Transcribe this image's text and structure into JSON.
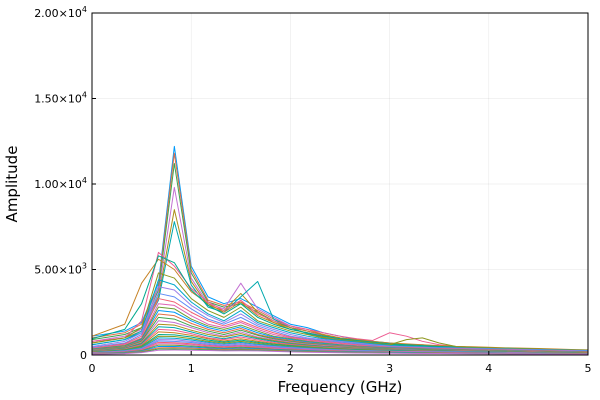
{
  "chart_data": {
    "type": "line",
    "xlabel": "Frequency (GHz)",
    "ylabel": "Amplitude",
    "xlim": [
      0,
      5
    ],
    "ylim": [
      0,
      20000
    ],
    "grid": true,
    "legend": "none",
    "x_ticks": [
      {
        "value": 0,
        "label": "0"
      },
      {
        "value": 1,
        "label": "1"
      },
      {
        "value": 2,
        "label": "2"
      },
      {
        "value": 3,
        "label": "3"
      },
      {
        "value": 4,
        "label": "4"
      },
      {
        "value": 5,
        "label": "5"
      }
    ],
    "y_ticks": [
      {
        "value": 0,
        "mantissa": "0",
        "exponent": ""
      },
      {
        "value": 5000,
        "mantissa": "5.00×10",
        "exponent": "3"
      },
      {
        "value": 10000,
        "mantissa": "1.00×10",
        "exponent": "4"
      },
      {
        "value": 15000,
        "mantissa": "1.50×10",
        "exponent": "4"
      },
      {
        "value": 20000,
        "mantissa": "2.00×10",
        "exponent": "4"
      }
    ],
    "x": [
      0,
      0.33,
      0.5,
      0.67,
      0.83,
      1.0,
      1.17,
      1.33,
      1.5,
      1.67,
      1.83,
      2.0,
      2.17,
      2.33,
      2.5,
      2.67,
      2.83,
      3.0,
      3.17,
      3.33,
      3.5,
      3.67,
      3.83,
      4.0,
      4.17,
      4.33,
      4.5,
      4.67,
      4.83,
      5.0
    ],
    "colors": [
      "#009AFA",
      "#E36F47",
      "#3EA44E",
      "#C371D2",
      "#AC8D18",
      "#00A9AD",
      "#ED5E93",
      "#C68225",
      "#00A98D",
      "#8E971E",
      "#00A8CB",
      "#9B7FE8",
      "#608CF6",
      "#F05F73",
      "#DD64B5",
      "#6B9E32"
    ],
    "series": [
      {
        "values": [
          1100,
          1400,
          1900,
          4200,
          12200,
          5200,
          3400,
          3000,
          3300,
          2800,
          2300,
          1800,
          1600,
          1300,
          1100,
          900,
          800,
          700,
          600,
          600,
          500,
          500,
          450,
          400,
          400,
          350,
          350,
          300,
          300,
          250
        ]
      },
      {
        "values": [
          1000,
          1300,
          1800,
          4000,
          11800,
          5000,
          3200,
          2900,
          3100,
          2600,
          2100,
          1700,
          1500,
          1200,
          1000,
          850,
          750,
          650,
          600,
          550,
          500,
          450,
          400,
          380,
          350,
          330,
          300,
          280,
          260,
          240
        ]
      },
      {
        "values": [
          900,
          1200,
          1600,
          3800,
          11200,
          4800,
          3100,
          2800,
          3000,
          2500,
          2000,
          1600,
          1400,
          1150,
          950,
          800,
          700,
          600,
          550,
          500,
          450,
          420,
          400,
          370,
          340,
          320,
          300,
          270,
          250,
          230
        ]
      },
      {
        "values": [
          800,
          1100,
          1500,
          3600,
          9800,
          4500,
          3000,
          2700,
          4200,
          2700,
          2200,
          1700,
          1400,
          1100,
          900,
          750,
          650,
          560,
          500,
          460,
          420,
          400,
          380,
          350,
          330,
          300,
          280,
          260,
          240,
          220
        ]
      },
      {
        "values": [
          700,
          1000,
          1400,
          3400,
          8500,
          4300,
          2900,
          2600,
          3600,
          2500,
          1900,
          1500,
          1300,
          1050,
          850,
          700,
          600,
          520,
          480,
          440,
          400,
          380,
          350,
          330,
          310,
          290,
          270,
          250,
          230,
          210
        ]
      },
      {
        "values": [
          600,
          900,
          1300,
          3200,
          7800,
          4100,
          2800,
          2500,
          3400,
          4300,
          2100,
          1600,
          1250,
          1000,
          800,
          650,
          560,
          500,
          450,
          420,
          380,
          360,
          340,
          320,
          300,
          280,
          260,
          240,
          220,
          200
        ]
      },
      {
        "values": [
          800,
          1000,
          2000,
          6000,
          5200,
          3900,
          3100,
          2600,
          3200,
          2400,
          2000,
          1700,
          1500,
          1300,
          1100,
          950,
          850,
          1300,
          1100,
          800,
          600,
          500,
          450,
          400,
          380,
          350,
          320,
          300,
          280,
          250
        ]
      },
      {
        "values": [
          1100,
          1800,
          4200,
          5600,
          5000,
          3700,
          3000,
          2500,
          3100,
          2300,
          1900,
          1600,
          1400,
          1200,
          1000,
          900,
          800,
          700,
          650,
          600,
          550,
          500,
          480,
          450,
          420,
          400,
          380,
          350,
          320,
          300
        ]
      },
      {
        "values": [
          950,
          1500,
          3000,
          5800,
          5400,
          3800,
          2900,
          2400,
          3000,
          2200,
          1800,
          1500,
          1300,
          1100,
          950,
          850,
          750,
          650,
          600,
          550,
          500,
          470,
          440,
          420,
          400,
          370,
          340,
          310,
          290,
          270
        ]
      },
      {
        "values": [
          700,
          1000,
          1600,
          4800,
          4500,
          3300,
          2600,
          2200,
          2800,
          2000,
          1700,
          1400,
          1200,
          1000,
          900,
          800,
          700,
          600,
          900,
          1000,
          700,
          500,
          450,
          420,
          400,
          380,
          350,
          320,
          300,
          280
        ]
      },
      {
        "values": [
          600,
          900,
          1400,
          4400,
          4100,
          3100,
          2400,
          2000,
          2600,
          1900,
          1600,
          1300,
          1100,
          950,
          850,
          750,
          650,
          560,
          520,
          480,
          440,
          420,
          400,
          380,
          360,
          340,
          320,
          300,
          280,
          260
        ]
      },
      {
        "values": [
          500,
          800,
          1300,
          4000,
          3800,
          2900,
          2300,
          1900,
          2400,
          1800,
          1500,
          1200,
          1000,
          900,
          800,
          700,
          600,
          520,
          480,
          450,
          420,
          400,
          380,
          360,
          340,
          320,
          300,
          280,
          260,
          240
        ]
      },
      {
        "values": [
          450,
          700,
          1200,
          3600,
          3400,
          2700,
          2100,
          1800,
          2200,
          1700,
          1400,
          1100,
          950,
          850,
          750,
          650,
          560,
          500,
          460,
          430,
          400,
          380,
          360,
          340,
          320,
          300,
          280,
          260,
          240,
          220
        ]
      },
      {
        "values": [
          400,
          650,
          1100,
          3300,
          3100,
          2500,
          2000,
          1700,
          2000,
          1600,
          1300,
          1050,
          900,
          800,
          700,
          600,
          520,
          470,
          440,
          410,
          380,
          360,
          340,
          320,
          300,
          280,
          260,
          240,
          220,
          200
        ]
      },
      {
        "values": [
          380,
          600,
          1000,
          3000,
          2900,
          2300,
          1800,
          1600,
          1900,
          1500,
          1200,
          1000,
          850,
          750,
          650,
          560,
          500,
          450,
          420,
          390,
          360,
          340,
          320,
          300,
          280,
          260,
          240,
          220,
          210,
          190
        ]
      },
      {
        "values": [
          350,
          550,
          950,
          2800,
          2700,
          2100,
          1700,
          1500,
          1750,
          1400,
          1100,
          950,
          800,
          700,
          600,
          520,
          470,
          430,
          400,
          370,
          340,
          320,
          300,
          280,
          270,
          250,
          230,
          210,
          200,
          180
        ]
      },
      {
        "values": [
          320,
          500,
          900,
          2600,
          2500,
          2000,
          1600,
          1400,
          1650,
          1300,
          1050,
          900,
          760,
          660,
          570,
          500,
          450,
          410,
          380,
          350,
          330,
          310,
          290,
          270,
          260,
          240,
          220,
          200,
          190,
          170
        ]
      },
      {
        "values": [
          300,
          480,
          850,
          2400,
          2300,
          1850,
          1500,
          1300,
          1550,
          1200,
          1000,
          850,
          720,
          620,
          540,
          480,
          430,
          390,
          360,
          340,
          310,
          300,
          280,
          260,
          250,
          230,
          210,
          190,
          180,
          160
        ]
      },
      {
        "values": [
          280,
          450,
          800,
          2200,
          2100,
          1700,
          1400,
          1200,
          1450,
          1150,
          950,
          800,
          680,
          590,
          510,
          450,
          410,
          370,
          340,
          320,
          300,
          280,
          270,
          250,
          240,
          220,
          200,
          180,
          170,
          150
        ]
      },
      {
        "values": [
          260,
          420,
          750,
          2000,
          1900,
          1600,
          1300,
          1100,
          1350,
          1050,
          900,
          750,
          640,
          560,
          490,
          430,
          390,
          350,
          330,
          300,
          280,
          270,
          250,
          240,
          230,
          210,
          190,
          170,
          160,
          140
        ]
      },
      {
        "values": [
          240,
          400,
          700,
          1800,
          1750,
          1450,
          1200,
          1050,
          1250,
          1000,
          850,
          700,
          600,
          520,
          460,
          410,
          370,
          340,
          310,
          290,
          270,
          250,
          240,
          230,
          220,
          200,
          180,
          160,
          150,
          130
        ]
      },
      {
        "values": [
          220,
          380,
          650,
          1650,
          1600,
          1350,
          1100,
          950,
          1150,
          950,
          800,
          660,
          560,
          490,
          430,
          380,
          350,
          320,
          300,
          280,
          260,
          240,
          230,
          220,
          210,
          190,
          170,
          150,
          140,
          120
        ]
      },
      {
        "values": [
          200,
          350,
          600,
          1500,
          1450,
          1250,
          1000,
          900,
          1050,
          880,
          740,
          620,
          530,
          460,
          410,
          360,
          330,
          300,
          280,
          260,
          240,
          230,
          220,
          210,
          200,
          180,
          160,
          140,
          130,
          110
        ]
      },
      {
        "values": [
          180,
          320,
          550,
          1350,
          1300,
          1150,
          950,
          820,
          950,
          800,
          680,
          580,
          500,
          430,
          380,
          340,
          310,
          280,
          260,
          240,
          230,
          220,
          210,
          200,
          190,
          170,
          150,
          130,
          120,
          100
        ]
      },
      {
        "values": [
          160,
          300,
          500,
          1200,
          1180,
          1050,
          870,
          760,
          870,
          740,
          630,
          540,
          460,
          400,
          360,
          320,
          290,
          270,
          250,
          230,
          220,
          210,
          200,
          190,
          180,
          160,
          140,
          120,
          110,
          90
        ]
      },
      {
        "values": [
          150,
          280,
          460,
          1100,
          1080,
          960,
          800,
          700,
          800,
          680,
          580,
          500,
          430,
          380,
          340,
          300,
          270,
          250,
          230,
          220,
          210,
          200,
          190,
          180,
          170,
          150,
          130,
          110,
          100,
          85
        ]
      },
      {
        "values": [
          140,
          260,
          420,
          1000,
          980,
          880,
          740,
          640,
          730,
          620,
          540,
          460,
          400,
          350,
          310,
          280,
          250,
          230,
          220,
          210,
          200,
          190,
          180,
          170,
          160,
          140,
          120,
          100,
          95,
          80
        ]
      },
      {
        "values": [
          130,
          240,
          380,
          900,
          890,
          800,
          680,
          590,
          670,
          570,
          500,
          430,
          370,
          330,
          290,
          260,
          240,
          220,
          210,
          200,
          190,
          180,
          170,
          160,
          150,
          130,
          110,
          95,
          90,
          75
        ]
      },
      {
        "values": [
          120,
          220,
          350,
          820,
          800,
          730,
          620,
          540,
          610,
          520,
          460,
          400,
          340,
          300,
          270,
          240,
          220,
          210,
          200,
          190,
          180,
          170,
          160,
          150,
          140,
          120,
          100,
          90,
          85,
          70
        ]
      },
      {
        "values": [
          110,
          200,
          320,
          740,
          720,
          660,
          560,
          490,
          550,
          480,
          420,
          360,
          310,
          280,
          250,
          220,
          200,
          190,
          180,
          170,
          160,
          150,
          140,
          130,
          120,
          110,
          95,
          85,
          80,
          65
        ]
      },
      {
        "values": [
          100,
          180,
          290,
          660,
          650,
          600,
          510,
          450,
          500,
          440,
          380,
          330,
          290,
          260,
          230,
          200,
          190,
          180,
          170,
          160,
          150,
          140,
          130,
          120,
          110,
          100,
          90,
          80,
          75,
          60
        ]
      },
      {
        "values": [
          90,
          160,
          260,
          580,
          570,
          530,
          460,
          400,
          450,
          400,
          340,
          300,
          260,
          230,
          210,
          190,
          170,
          160,
          150,
          140,
          130,
          120,
          115,
          110,
          100,
          90,
          80,
          70,
          65,
          55
        ]
      },
      {
        "values": [
          80,
          140,
          230,
          500,
          500,
          470,
          410,
          360,
          400,
          360,
          310,
          270,
          240,
          210,
          190,
          170,
          160,
          150,
          140,
          130,
          120,
          110,
          105,
          100,
          90,
          80,
          70,
          65,
          60,
          50
        ]
      },
      {
        "values": [
          70,
          120,
          200,
          420,
          430,
          400,
          360,
          320,
          350,
          320,
          280,
          240,
          210,
          190,
          170,
          150,
          140,
          130,
          120,
          115,
          110,
          100,
          95,
          90,
          80,
          70,
          65,
          60,
          55,
          45
        ]
      },
      {
        "values": [
          60,
          100,
          170,
          350,
          360,
          340,
          310,
          280,
          300,
          280,
          240,
          210,
          190,
          170,
          150,
          140,
          130,
          120,
          110,
          100,
          95,
          90,
          85,
          80,
          70,
          65,
          60,
          55,
          50,
          40
        ]
      },
      {
        "values": [
          50,
          80,
          140,
          280,
          290,
          280,
          260,
          240,
          250,
          240,
          210,
          180,
          160,
          150,
          130,
          120,
          110,
          100,
          95,
          90,
          85,
          80,
          75,
          70,
          65,
          60,
          55,
          50,
          45,
          35
        ]
      }
    ]
  }
}
